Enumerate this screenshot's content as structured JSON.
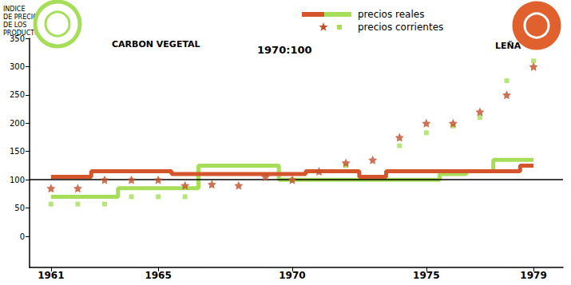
{
  "chart_data": {
    "type": "line",
    "title": "1970:100",
    "y_label": "INDICE\nDE PRECIOS\nDE LOS\nPRODUCTOS",
    "x": [
      1961,
      1962,
      1963,
      1964,
      1965,
      1966,
      1967,
      1968,
      1969,
      1970,
      1971,
      1972,
      1973,
      1974,
      1975,
      1976,
      1977,
      1978,
      1979
    ],
    "xlim": [
      1960.2,
      1980.1
    ],
    "xticks": [
      1961,
      1965,
      1970,
      1975,
      1979
    ],
    "ylim": [
      -55,
      350
    ],
    "yticks": [
      0,
      50,
      100,
      150,
      200,
      250,
      300,
      350
    ],
    "reference_line": 100,
    "grid": false,
    "legend": "top",
    "products": [
      {
        "name": "CARBON VEGETAL",
        "color": "#a6de5a"
      },
      {
        "name": "LEÑA",
        "color": "#e0612e"
      }
    ],
    "series": [
      {
        "name": "precios reales",
        "product": "CARBON VEGETAL",
        "type": "line",
        "line_style": "solid",
        "color": "#a6de5a",
        "values": [
          70,
          70,
          70,
          85,
          85,
          85,
          125,
          125,
          125,
          100,
          100,
          100,
          100,
          100,
          100,
          110,
          115,
          135,
          135
        ]
      },
      {
        "name": "precios reales",
        "product": "LEÑA",
        "type": "line",
        "line_style": "solid",
        "color": "#d4542c",
        "values": [
          105,
          105,
          115,
          115,
          115,
          110,
          110,
          110,
          110,
          110,
          115,
          115,
          105,
          115,
          115,
          115,
          115,
          115,
          125
        ]
      },
      {
        "name": "precios corrientes",
        "product": "CARBON VEGETAL",
        "type": "scatter",
        "marker": "square",
        "color": "#a6de5a",
        "values": [
          57,
          57,
          57,
          70,
          70,
          70,
          null,
          null,
          null,
          100,
          null,
          125,
          null,
          160,
          183,
          195,
          210,
          275,
          310
        ]
      },
      {
        "name": "precios corrientes",
        "product": "LEÑA",
        "type": "scatter",
        "marker": "star",
        "color": "#c0502a",
        "values": [
          85,
          85,
          100,
          100,
          100,
          90,
          92,
          90,
          105,
          100,
          115,
          130,
          135,
          175,
          200,
          200,
          220,
          250,
          300
        ]
      }
    ]
  }
}
